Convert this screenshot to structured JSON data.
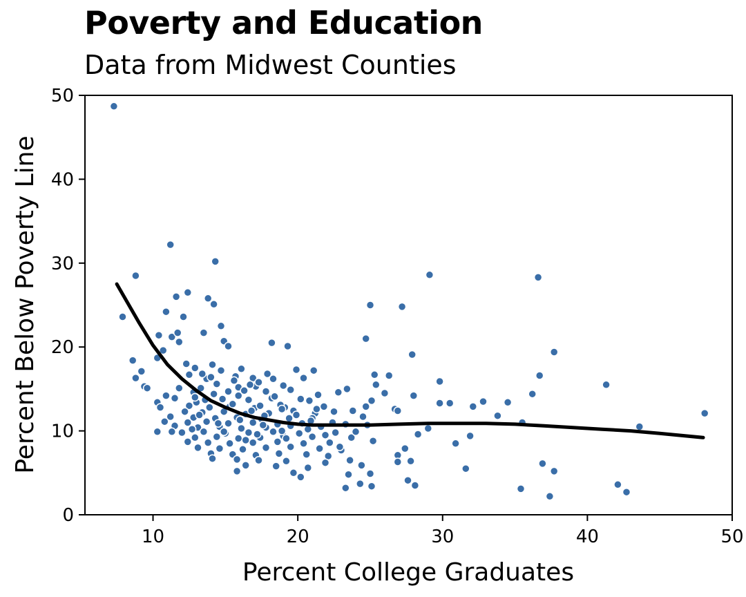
{
  "chart_data": {
    "type": "scatter",
    "title": "Poverty and Education",
    "subtitle": "Data from Midwest Counties",
    "xlabel": "Percent College Graduates",
    "ylabel": "Percent Below Poverty Line",
    "xlim": [
      5.3,
      50
    ],
    "ylim": [
      0,
      50
    ],
    "x_ticks": [
      10,
      20,
      30,
      40,
      50
    ],
    "y_ticks": [
      0,
      10,
      20,
      30,
      40,
      50
    ],
    "point_color": "#3a6ea8",
    "point_stroke": "#ffffff",
    "line_color": "#000000",
    "grid": false,
    "points": [
      [
        7.3,
        48.7
      ],
      [
        11.2,
        32.2
      ],
      [
        14.3,
        30.2
      ],
      [
        8.8,
        28.5
      ],
      [
        29.1,
        28.6
      ],
      [
        36.6,
        28.3
      ],
      [
        12.4,
        26.5
      ],
      [
        11.6,
        26.0
      ],
      [
        13.8,
        25.8
      ],
      [
        25.0,
        25.0
      ],
      [
        14.2,
        25.1
      ],
      [
        27.2,
        24.8
      ],
      [
        7.9,
        23.6
      ],
      [
        10.9,
        24.2
      ],
      [
        12.1,
        23.6
      ],
      [
        11.3,
        21.2
      ],
      [
        14.7,
        22.5
      ],
      [
        11.7,
        21.7
      ],
      [
        13.5,
        21.7
      ],
      [
        10.4,
        21.4
      ],
      [
        11.8,
        20.6
      ],
      [
        14.9,
        20.7
      ],
      [
        18.2,
        20.5
      ],
      [
        19.3,
        20.1
      ],
      [
        24.7,
        21.0
      ],
      [
        37.7,
        19.4
      ],
      [
        10.7,
        19.6
      ],
      [
        27.9,
        19.1
      ],
      [
        15.2,
        20.1
      ],
      [
        8.6,
        18.4
      ],
      [
        10.3,
        18.7
      ],
      [
        12.3,
        18.0
      ],
      [
        9.2,
        17.1
      ],
      [
        12.9,
        17.5
      ],
      [
        14.1,
        17.9
      ],
      [
        16.1,
        17.4
      ],
      [
        19.9,
        17.3
      ],
      [
        21.1,
        17.2
      ],
      [
        25.3,
        16.7
      ],
      [
        26.3,
        16.6
      ],
      [
        36.7,
        16.6
      ],
      [
        8.8,
        16.3
      ],
      [
        12.5,
        16.7
      ],
      [
        13.7,
        16.2
      ],
      [
        16.9,
        16.3
      ],
      [
        18.3,
        16.2
      ],
      [
        20.4,
        16.3
      ],
      [
        9.4,
        15.3
      ],
      [
        9.6,
        15.1
      ],
      [
        11.8,
        15.1
      ],
      [
        14.4,
        15.6
      ],
      [
        15.9,
        15.2
      ],
      [
        17.1,
        15.3
      ],
      [
        19.0,
        15.4
      ],
      [
        23.4,
        15.0
      ],
      [
        25.4,
        15.5
      ],
      [
        29.8,
        15.9
      ],
      [
        41.3,
        15.5
      ],
      [
        10.9,
        14.2
      ],
      [
        12.8,
        14.6
      ],
      [
        14.2,
        14.4
      ],
      [
        15.9,
        14.2
      ],
      [
        17.8,
        14.7
      ],
      [
        19.5,
        14.9
      ],
      [
        21.4,
        14.3
      ],
      [
        22.8,
        14.6
      ],
      [
        26.0,
        14.5
      ],
      [
        28.0,
        14.2
      ],
      [
        36.2,
        14.4
      ],
      [
        11.5,
        13.9
      ],
      [
        13.0,
        13.4
      ],
      [
        14.8,
        13.8
      ],
      [
        16.6,
        13.7
      ],
      [
        18.2,
        13.9
      ],
      [
        20.8,
        13.6
      ],
      [
        25.1,
        13.6
      ],
      [
        29.8,
        13.3
      ],
      [
        30.5,
        13.3
      ],
      [
        32.8,
        13.5
      ],
      [
        34.5,
        13.4
      ],
      [
        10.3,
        13.4
      ],
      [
        12.5,
        13.0
      ],
      [
        13.9,
        12.8
      ],
      [
        15.3,
        12.9
      ],
      [
        17.0,
        12.7
      ],
      [
        19.1,
        12.8
      ],
      [
        21.8,
        12.9
      ],
      [
        24.7,
        12.9
      ],
      [
        26.7,
        12.6
      ],
      [
        32.1,
        12.9
      ],
      [
        10.5,
        12.8
      ],
      [
        12.2,
        12.3
      ],
      [
        13.4,
        12.2
      ],
      [
        14.9,
        12.3
      ],
      [
        16.4,
        12.0
      ],
      [
        18.0,
        12.1
      ],
      [
        19.7,
        12.4
      ],
      [
        21.2,
        12.1
      ],
      [
        23.8,
        12.4
      ],
      [
        26.9,
        12.4
      ],
      [
        48.1,
        12.1
      ],
      [
        11.2,
        11.7
      ],
      [
        12.8,
        11.6
      ],
      [
        14.3,
        11.5
      ],
      [
        15.8,
        11.6
      ],
      [
        17.5,
        11.4
      ],
      [
        19.4,
        11.5
      ],
      [
        21.0,
        11.5
      ],
      [
        24.5,
        11.7
      ],
      [
        33.8,
        11.8
      ],
      [
        10.8,
        11.1
      ],
      [
        12.4,
        11.0
      ],
      [
        13.7,
        11.1
      ],
      [
        15.2,
        10.9
      ],
      [
        16.9,
        11.0
      ],
      [
        18.6,
        10.8
      ],
      [
        20.3,
        10.9
      ],
      [
        22.4,
        11.0
      ],
      [
        35.5,
        11.0
      ],
      [
        11.5,
        10.6
      ],
      [
        13.1,
        10.4
      ],
      [
        14.6,
        10.5
      ],
      [
        16.1,
        10.3
      ],
      [
        17.8,
        10.4
      ],
      [
        19.5,
        10.6
      ],
      [
        21.6,
        10.5
      ],
      [
        24.8,
        10.7
      ],
      [
        29.0,
        10.3
      ],
      [
        43.6,
        10.5
      ],
      [
        10.3,
        9.9
      ],
      [
        12.0,
        9.8
      ],
      [
        13.5,
        9.9
      ],
      [
        15.0,
        9.7
      ],
      [
        16.6,
        9.8
      ],
      [
        18.3,
        9.9
      ],
      [
        20.1,
        9.7
      ],
      [
        22.6,
        9.8
      ],
      [
        28.3,
        9.6
      ],
      [
        11.3,
        9.9
      ],
      [
        12.9,
        9.2
      ],
      [
        14.4,
        9.3
      ],
      [
        15.9,
        9.1
      ],
      [
        17.4,
        9.2
      ],
      [
        19.0,
        9.4
      ],
      [
        21.0,
        9.3
      ],
      [
        23.7,
        9.2
      ],
      [
        31.9,
        9.4
      ],
      [
        12.4,
        8.7
      ],
      [
        13.8,
        8.6
      ],
      [
        15.3,
        8.5
      ],
      [
        16.9,
        8.6
      ],
      [
        18.6,
        8.7
      ],
      [
        20.4,
        8.5
      ],
      [
        22.2,
        8.6
      ],
      [
        25.2,
        8.8
      ],
      [
        30.9,
        8.5
      ],
      [
        13.1,
        8.0
      ],
      [
        14.6,
        7.9
      ],
      [
        16.2,
        7.8
      ],
      [
        17.8,
        8.0
      ],
      [
        19.5,
        8.1
      ],
      [
        21.5,
        7.9
      ],
      [
        23.0,
        7.7
      ],
      [
        27.4,
        7.9
      ],
      [
        14.0,
        7.3
      ],
      [
        15.5,
        7.2
      ],
      [
        17.1,
        7.1
      ],
      [
        18.7,
        7.3
      ],
      [
        20.6,
        7.2
      ],
      [
        22.1,
        7.0
      ],
      [
        26.9,
        7.1
      ],
      [
        14.1,
        6.7
      ],
      [
        15.8,
        6.6
      ],
      [
        17.3,
        6.5
      ],
      [
        19.2,
        6.4
      ],
      [
        21.9,
        6.2
      ],
      [
        23.6,
        6.5
      ],
      [
        27.8,
        6.4
      ],
      [
        36.9,
        6.1
      ],
      [
        16.4,
        5.9
      ],
      [
        18.5,
        5.8
      ],
      [
        20.7,
        5.6
      ],
      [
        24.4,
        5.9
      ],
      [
        26.9,
        6.3
      ],
      [
        31.6,
        5.5
      ],
      [
        15.8,
        5.2
      ],
      [
        19.7,
        5.0
      ],
      [
        23.5,
        4.8
      ],
      [
        25.0,
        4.9
      ],
      [
        37.7,
        5.2
      ],
      [
        20.2,
        4.5
      ],
      [
        27.6,
        4.1
      ],
      [
        24.3,
        3.7
      ],
      [
        23.3,
        3.2
      ],
      [
        25.1,
        3.4
      ],
      [
        28.1,
        3.5
      ],
      [
        35.4,
        3.1
      ],
      [
        42.1,
        3.6
      ],
      [
        42.7,
        2.7
      ],
      [
        37.4,
        2.2
      ],
      [
        12.9,
        14.0
      ],
      [
        13.3,
        15.1
      ],
      [
        14.0,
        16.4
      ],
      [
        15.7,
        16.5
      ],
      [
        16.3,
        14.8
      ],
      [
        17.4,
        13.0
      ],
      [
        18.8,
        13.1
      ],
      [
        19.9,
        11.9
      ],
      [
        20.7,
        10.2
      ],
      [
        21.9,
        9.5
      ],
      [
        22.9,
        8.1
      ],
      [
        13.2,
        11.9
      ],
      [
        14.5,
        10.9
      ],
      [
        16.0,
        11.3
      ],
      [
        17.2,
        9.6
      ],
      [
        18.9,
        10.0
      ],
      [
        15.5,
        13.2
      ],
      [
        16.8,
        12.4
      ],
      [
        17.7,
        11.8
      ],
      [
        18.9,
        12.6
      ],
      [
        20.2,
        13.8
      ],
      [
        21.3,
        12.6
      ],
      [
        12.7,
        10.2
      ],
      [
        14.9,
        9.9
      ],
      [
        16.4,
        8.9
      ],
      [
        17.6,
        10.7
      ],
      [
        19.2,
        9.1
      ],
      [
        20.9,
        11.2
      ],
      [
        13.6,
        13.7
      ],
      [
        15.2,
        14.7
      ],
      [
        17.3,
        15.8
      ],
      [
        18.4,
        14.1
      ],
      [
        14.7,
        17.2
      ],
      [
        15.6,
        16.0
      ],
      [
        13.4,
        16.8
      ],
      [
        16.7,
        15.5
      ],
      [
        17.9,
        16.8
      ],
      [
        22.5,
        12.3
      ],
      [
        23.3,
        10.8
      ],
      [
        24.0,
        9.9
      ]
    ],
    "trend_line": [
      [
        7.5,
        27.5
      ],
      [
        9,
        23.0
      ],
      [
        10,
        20.2
      ],
      [
        11,
        17.9
      ],
      [
        12,
        16.2
      ],
      [
        13,
        14.8
      ],
      [
        14,
        13.6
      ],
      [
        15,
        12.8
      ],
      [
        16,
        12.1
      ],
      [
        17,
        11.6
      ],
      [
        18,
        11.3
      ],
      [
        19,
        11.0
      ],
      [
        20,
        10.8
      ],
      [
        21,
        10.7
      ],
      [
        22,
        10.7
      ],
      [
        23,
        10.7
      ],
      [
        25,
        10.7
      ],
      [
        27,
        10.8
      ],
      [
        29,
        10.9
      ],
      [
        31,
        10.9
      ],
      [
        33,
        10.9
      ],
      [
        35,
        10.8
      ],
      [
        37,
        10.6
      ],
      [
        39,
        10.4
      ],
      [
        41,
        10.2
      ],
      [
        43,
        10.0
      ],
      [
        45,
        9.7
      ],
      [
        48,
        9.2
      ]
    ]
  }
}
